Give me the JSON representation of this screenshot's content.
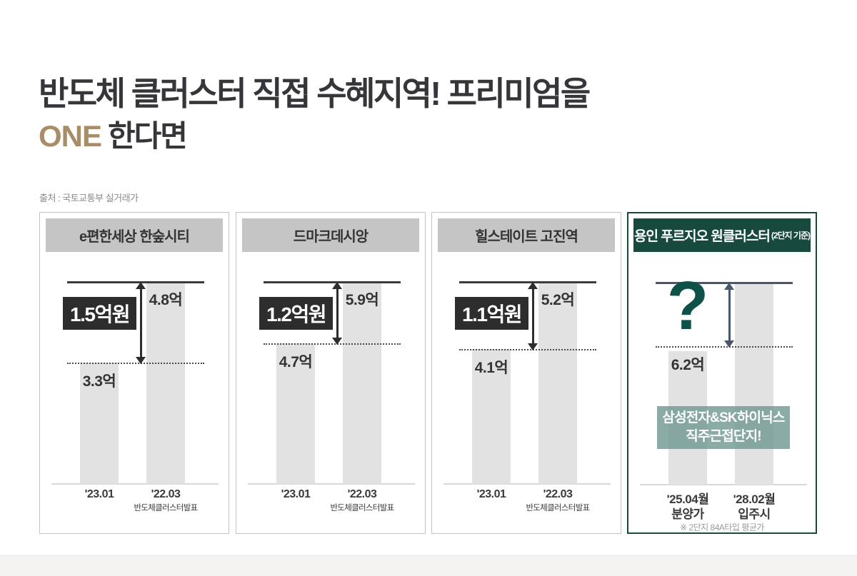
{
  "header": {
    "line1": "반도체 클러스터 직접 수혜지역! 프리미엄을",
    "accent": "ONE",
    "line2_rest": "한다면",
    "source": "출처 : 국토교통부 실거래가"
  },
  "colors": {
    "accent_gold": "#a88e68",
    "teal_dark": "#17493f",
    "teal_question": "#0e5148",
    "badge_dark": "#2d2d2d",
    "bar_fill": "#e2e2e2",
    "header_band_gray": "#c5c5c5",
    "banner_teal": "#729a92",
    "arrow_slate": "#47586e"
  },
  "panels": [
    {
      "title": "e편한세상 한숲시티",
      "diff_label": "1.5억원",
      "left_value": "3.3억",
      "right_value": "4.8억",
      "left_label": "'23.01",
      "right_label": "'22.03",
      "right_sublabel": "반도체클러스터발표"
    },
    {
      "title": "드마크데시앙",
      "diff_label": "1.2억원",
      "left_value": "4.7억",
      "right_value": "5.9억",
      "left_label": "'23.01",
      "right_label": "'22.03",
      "right_sublabel": "반도체클러스터발표"
    },
    {
      "title": "힐스테이트 고진역",
      "diff_label": "1.1억원",
      "left_value": "4.1억",
      "right_value": "5.2억",
      "left_label": "'23.01",
      "right_label": "'22.03",
      "right_sublabel": "반도체클러스터발표"
    },
    {
      "title": "용인 푸르지오 원클러스터",
      "title_suffix": "(2단지 기준)",
      "diff_label": "?",
      "left_value": "6.2억",
      "left_label": "'25.04월",
      "left_sublabel": "분양가",
      "right_label": "'28.02월",
      "right_sublabel": "입주시",
      "banner_line1": "삼성전자&SK하이닉스",
      "banner_line2": "직주근접단지!",
      "footnote": "※ 2단지 84A타입 평균가"
    }
  ],
  "chart_data": [
    {
      "type": "bar",
      "title": "e편한세상 한숲시티",
      "categories": [
        "'23.01",
        "'22.03 반도체클러스터발표"
      ],
      "values": [
        3.3,
        4.8
      ],
      "unit": "억원",
      "diff": 1.5,
      "diff_label": "1.5억원"
    },
    {
      "type": "bar",
      "title": "드마크데시앙",
      "categories": [
        "'23.01",
        "'22.03 반도체클러스터발표"
      ],
      "values": [
        4.7,
        5.9
      ],
      "unit": "억원",
      "diff": 1.2,
      "diff_label": "1.2억원"
    },
    {
      "type": "bar",
      "title": "힐스테이트 고진역",
      "categories": [
        "'23.01",
        "'22.03 반도체클러스터발표"
      ],
      "values": [
        4.1,
        5.2
      ],
      "unit": "억원",
      "diff": 1.1,
      "diff_label": "1.1억원"
    },
    {
      "type": "bar",
      "title": "용인 푸르지오 원클러스터(2단지 기준)",
      "categories": [
        "'25.04월 분양가",
        "'28.02월 입주시"
      ],
      "values": [
        6.2,
        null
      ],
      "unit": "억원",
      "diff": null,
      "diff_label": "?",
      "annotation": "삼성전자&SK하이닉스 직주근접단지!",
      "footnote": "※ 2단지 84A타입 평균가",
      "source": "출처 : 국토교통부 실거래가"
    }
  ]
}
